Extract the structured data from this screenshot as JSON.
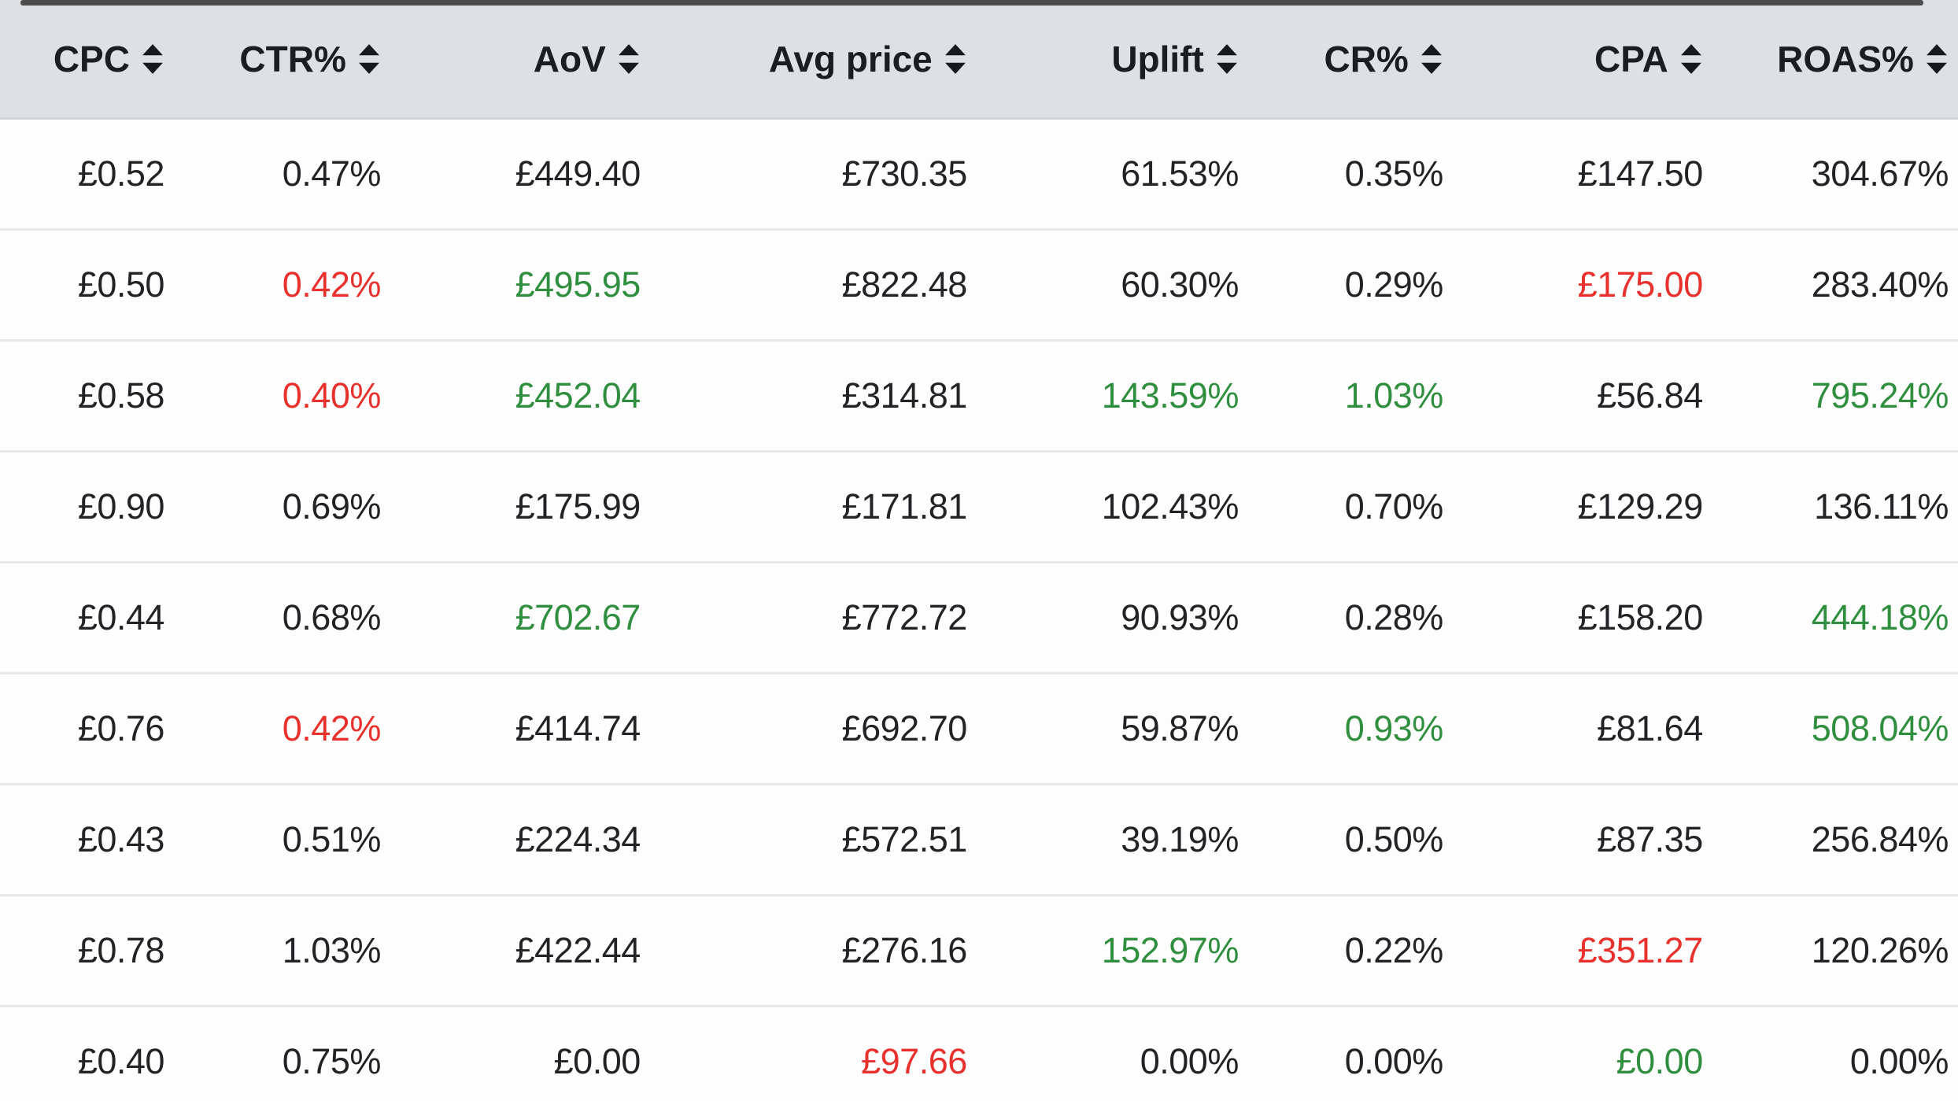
{
  "table": {
    "columns": [
      {
        "id": "cpc",
        "label": "CPC"
      },
      {
        "id": "ctr",
        "label": "CTR%"
      },
      {
        "id": "aov",
        "label": "AoV"
      },
      {
        "id": "avg-price",
        "label": "Avg price"
      },
      {
        "id": "uplift",
        "label": "Uplift"
      },
      {
        "id": "cr",
        "label": "CR%"
      },
      {
        "id": "cpa",
        "label": "CPA"
      },
      {
        "id": "roas",
        "label": "ROAS%"
      }
    ],
    "rows": [
      [
        {
          "v": "£0.52",
          "c": ""
        },
        {
          "v": "0.47%",
          "c": ""
        },
        {
          "v": "£449.40",
          "c": ""
        },
        {
          "v": "£730.35",
          "c": ""
        },
        {
          "v": "61.53%",
          "c": ""
        },
        {
          "v": "0.35%",
          "c": ""
        },
        {
          "v": "£147.50",
          "c": ""
        },
        {
          "v": "304.67%",
          "c": ""
        }
      ],
      [
        {
          "v": "£0.50",
          "c": ""
        },
        {
          "v": "0.42%",
          "c": "neg"
        },
        {
          "v": "£495.95",
          "c": "pos"
        },
        {
          "v": "£822.48",
          "c": ""
        },
        {
          "v": "60.30%",
          "c": ""
        },
        {
          "v": "0.29%",
          "c": ""
        },
        {
          "v": "£175.00",
          "c": "neg"
        },
        {
          "v": "283.40%",
          "c": ""
        }
      ],
      [
        {
          "v": "£0.58",
          "c": ""
        },
        {
          "v": "0.40%",
          "c": "neg"
        },
        {
          "v": "£452.04",
          "c": "pos"
        },
        {
          "v": "£314.81",
          "c": ""
        },
        {
          "v": "143.59%",
          "c": "pos"
        },
        {
          "v": "1.03%",
          "c": "pos"
        },
        {
          "v": "£56.84",
          "c": ""
        },
        {
          "v": "795.24%",
          "c": "pos"
        }
      ],
      [
        {
          "v": "£0.90",
          "c": ""
        },
        {
          "v": "0.69%",
          "c": ""
        },
        {
          "v": "£175.99",
          "c": ""
        },
        {
          "v": "£171.81",
          "c": ""
        },
        {
          "v": "102.43%",
          "c": ""
        },
        {
          "v": "0.70%",
          "c": ""
        },
        {
          "v": "£129.29",
          "c": ""
        },
        {
          "v": "136.11%",
          "c": ""
        }
      ],
      [
        {
          "v": "£0.44",
          "c": ""
        },
        {
          "v": "0.68%",
          "c": ""
        },
        {
          "v": "£702.67",
          "c": "pos"
        },
        {
          "v": "£772.72",
          "c": ""
        },
        {
          "v": "90.93%",
          "c": ""
        },
        {
          "v": "0.28%",
          "c": ""
        },
        {
          "v": "£158.20",
          "c": ""
        },
        {
          "v": "444.18%",
          "c": "pos"
        }
      ],
      [
        {
          "v": "£0.76",
          "c": ""
        },
        {
          "v": "0.42%",
          "c": "neg"
        },
        {
          "v": "£414.74",
          "c": ""
        },
        {
          "v": "£692.70",
          "c": ""
        },
        {
          "v": "59.87%",
          "c": ""
        },
        {
          "v": "0.93%",
          "c": "pos"
        },
        {
          "v": "£81.64",
          "c": ""
        },
        {
          "v": "508.04%",
          "c": "pos"
        }
      ],
      [
        {
          "v": "£0.43",
          "c": ""
        },
        {
          "v": "0.51%",
          "c": ""
        },
        {
          "v": "£224.34",
          "c": ""
        },
        {
          "v": "£572.51",
          "c": ""
        },
        {
          "v": "39.19%",
          "c": ""
        },
        {
          "v": "0.50%",
          "c": ""
        },
        {
          "v": "£87.35",
          "c": ""
        },
        {
          "v": "256.84%",
          "c": ""
        }
      ],
      [
        {
          "v": "£0.78",
          "c": ""
        },
        {
          "v": "1.03%",
          "c": ""
        },
        {
          "v": "£422.44",
          "c": ""
        },
        {
          "v": "£276.16",
          "c": ""
        },
        {
          "v": "152.97%",
          "c": "pos"
        },
        {
          "v": "0.22%",
          "c": ""
        },
        {
          "v": "£351.27",
          "c": "neg"
        },
        {
          "v": "120.26%",
          "c": ""
        }
      ],
      [
        {
          "v": "£0.40",
          "c": ""
        },
        {
          "v": "0.75%",
          "c": ""
        },
        {
          "v": "£0.00",
          "c": ""
        },
        {
          "v": "£97.66",
          "c": "neg"
        },
        {
          "v": "0.00%",
          "c": ""
        },
        {
          "v": "0.00%",
          "c": ""
        },
        {
          "v": "£0.00",
          "c": "pos"
        },
        {
          "v": "0.00%",
          "c": ""
        }
      ]
    ]
  },
  "colors": {
    "positive": "#2f8f3f",
    "negative": "#e8312d",
    "header_bg": "#dde1e4"
  }
}
